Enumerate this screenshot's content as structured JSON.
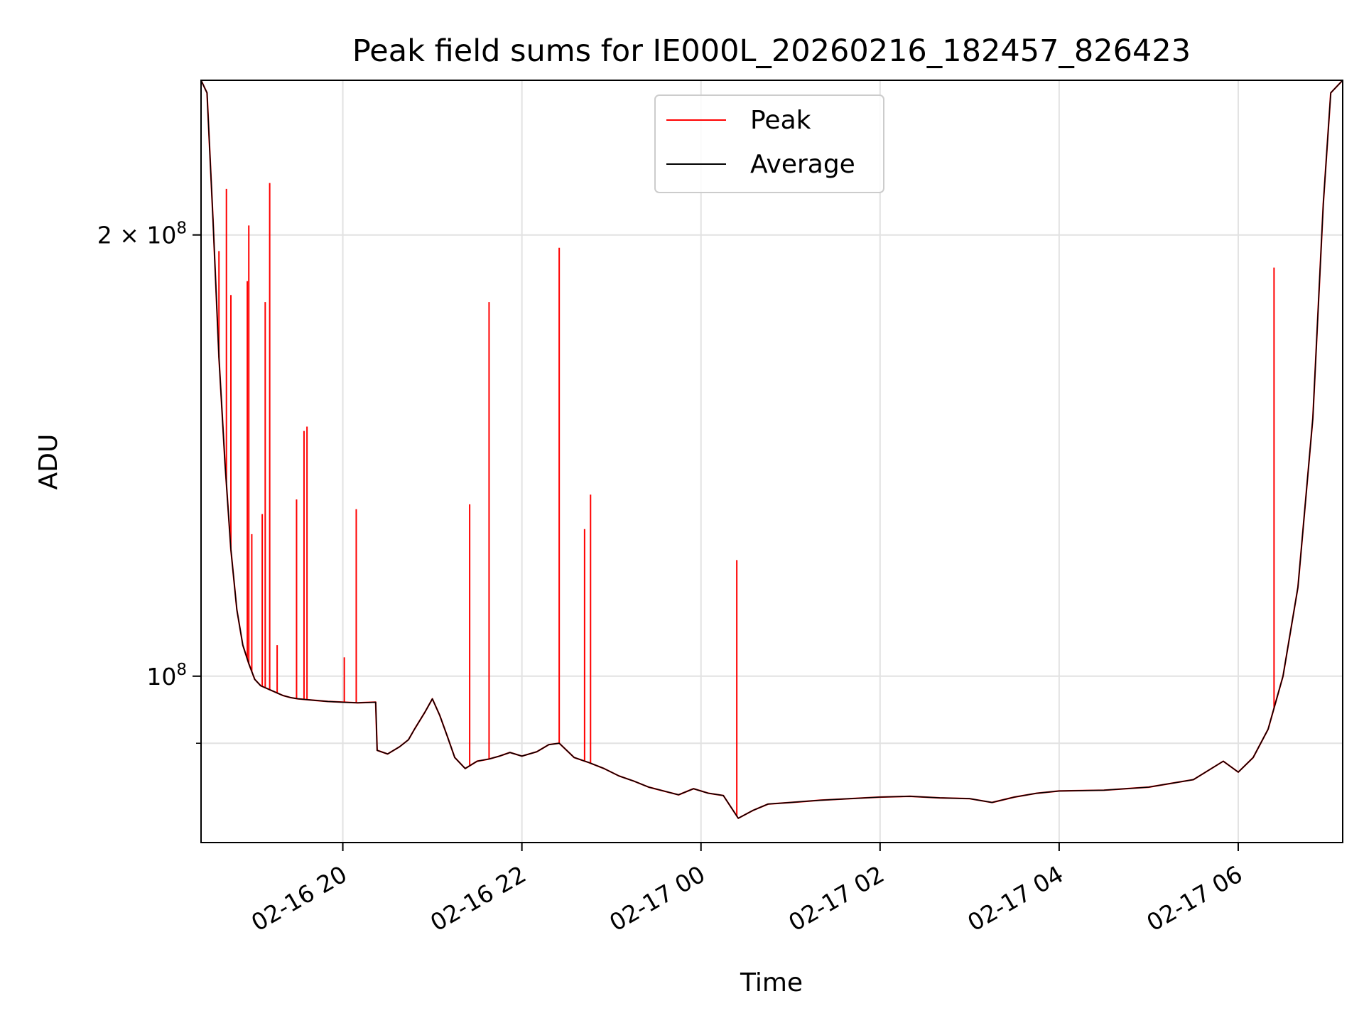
{
  "chart_data": {
    "type": "line",
    "title": "Peak field sums for IE000L_20260216_182457_826423",
    "xlabel": "Time",
    "ylabel": "ADU",
    "yscale": "log",
    "ylim": [
      77000000,
      255000000
    ],
    "xlim": [
      "2026-02-16 18:25",
      "2026-02-17 07:10"
    ],
    "grid": true,
    "legend_position": "top-center",
    "x_tick_labels": [
      "02-16 20",
      "02-16 22",
      "02-17 00",
      "02-17 02",
      "02-17 04",
      "02-17 06"
    ],
    "x_ticks": [
      "2026-02-16 20:00",
      "2026-02-16 22:00",
      "2026-02-17 00:00",
      "2026-02-17 02:00",
      "2026-02-17 04:00",
      "2026-02-17 06:00"
    ],
    "y_major_ticks": [
      {
        "value": 100000000,
        "base": "10",
        "exp": "8",
        "coef": ""
      },
      {
        "value": 200000000,
        "base": "10",
        "exp": "8",
        "coef": "2 × "
      }
    ],
    "y_minor_ticks": [
      90000000
    ],
    "series": [
      {
        "name": "Average",
        "color": "#000000",
        "x": [
          "2026-02-16 18:25",
          "2026-02-16 18:29",
          "2026-02-16 18:33",
          "2026-02-16 18:37",
          "2026-02-16 18:41",
          "2026-02-16 18:45",
          "2026-02-16 18:49",
          "2026-02-16 18:53",
          "2026-02-16 18:57",
          "2026-02-16 19:01",
          "2026-02-16 19:05",
          "2026-02-16 19:10",
          "2026-02-16 19:15",
          "2026-02-16 19:20",
          "2026-02-16 19:25",
          "2026-02-16 19:30",
          "2026-02-16 19:40",
          "2026-02-16 19:50",
          "2026-02-16 20:00",
          "2026-02-16 20:10",
          "2026-02-16 20:22",
          "2026-02-16 20:23",
          "2026-02-16 20:30",
          "2026-02-16 20:38",
          "2026-02-16 20:44",
          "2026-02-16 20:48",
          "2026-02-16 20:55",
          "2026-02-16 21:00",
          "2026-02-16 21:05",
          "2026-02-16 21:10",
          "2026-02-16 21:15",
          "2026-02-16 21:22",
          "2026-02-16 21:30",
          "2026-02-16 21:38",
          "2026-02-16 21:45",
          "2026-02-16 21:52",
          "2026-02-16 22:00",
          "2026-02-16 22:10",
          "2026-02-16 22:18",
          "2026-02-16 22:25",
          "2026-02-16 22:35",
          "2026-02-16 22:45",
          "2026-02-16 22:55",
          "2026-02-16 23:05",
          "2026-02-16 23:15",
          "2026-02-16 23:25",
          "2026-02-16 23:35",
          "2026-02-16 23:45",
          "2026-02-16 23:55",
          "2026-02-17 00:05",
          "2026-02-17 00:15",
          "2026-02-17 00:25",
          "2026-02-17 00:35",
          "2026-02-17 00:45",
          "2026-02-17 01:00",
          "2026-02-17 01:20",
          "2026-02-17 01:40",
          "2026-02-17 02:00",
          "2026-02-17 02:20",
          "2026-02-17 02:40",
          "2026-02-17 03:00",
          "2026-02-17 03:15",
          "2026-02-17 03:30",
          "2026-02-17 03:45",
          "2026-02-17 04:00",
          "2026-02-17 04:30",
          "2026-02-17 05:00",
          "2026-02-17 05:30",
          "2026-02-17 05:50",
          "2026-02-17 06:00",
          "2026-02-17 06:10",
          "2026-02-17 06:20",
          "2026-02-17 06:30",
          "2026-02-17 06:40",
          "2026-02-17 06:50",
          "2026-02-17 06:57",
          "2026-02-17 07:02",
          "2026-02-17 07:10"
        ],
        "values": [
          255000000,
          250000000,
          205000000,
          165000000,
          140000000,
          122000000,
          111000000,
          105000000,
          102000000,
          99500000,
          98500000,
          98000000,
          97500000,
          97000000,
          96700000,
          96500000,
          96300000,
          96100000,
          96000000,
          95900000,
          96000000,
          89000000,
          88500000,
          89500000,
          90500000,
          92000000,
          94500000,
          96500000,
          94000000,
          91000000,
          88000000,
          86500000,
          87500000,
          87800000,
          88200000,
          88700000,
          88200000,
          88800000,
          89800000,
          90000000,
          88000000,
          87300000,
          86500000,
          85500000,
          84800000,
          84000000,
          83500000,
          83000000,
          83800000,
          83200000,
          82900000,
          80000000,
          81000000,
          81800000,
          82000000,
          82300000,
          82500000,
          82700000,
          82800000,
          82600000,
          82500000,
          82000000,
          82700000,
          83200000,
          83500000,
          83600000,
          84000000,
          85000000,
          87500000,
          86000000,
          88000000,
          92000000,
          100000000,
          115000000,
          150000000,
          210000000,
          250000000,
          255000000
        ]
      },
      {
        "name": "Peak",
        "color": "#ff0000",
        "spikes": [
          {
            "x": "2026-02-16 18:37",
            "value": 195000000
          },
          {
            "x": "2026-02-16 18:42",
            "value": 215000000
          },
          {
            "x": "2026-02-16 18:45",
            "value": 182000000
          },
          {
            "x": "2026-02-16 18:56",
            "value": 186000000
          },
          {
            "x": "2026-02-16 18:57",
            "value": 203000000
          },
          {
            "x": "2026-02-16 18:59",
            "value": 125000000
          },
          {
            "x": "2026-02-16 19:06",
            "value": 129000000
          },
          {
            "x": "2026-02-16 19:08",
            "value": 180000000
          },
          {
            "x": "2026-02-16 19:11",
            "value": 217000000
          },
          {
            "x": "2026-02-16 19:16",
            "value": 105000000
          },
          {
            "x": "2026-02-16 19:29",
            "value": 132000000
          },
          {
            "x": "2026-02-16 19:34",
            "value": 147000000
          },
          {
            "x": "2026-02-16 19:36",
            "value": 148000000
          },
          {
            "x": "2026-02-16 20:01",
            "value": 103000000
          },
          {
            "x": "2026-02-16 20:09",
            "value": 130000000
          },
          {
            "x": "2026-02-16 21:25",
            "value": 131000000
          },
          {
            "x": "2026-02-16 21:38",
            "value": 180000000
          },
          {
            "x": "2026-02-16 22:25",
            "value": 196000000
          },
          {
            "x": "2026-02-16 22:42",
            "value": 126000000
          },
          {
            "x": "2026-02-16 22:46",
            "value": 133000000
          },
          {
            "x": "2026-02-17 00:24",
            "value": 120000000
          },
          {
            "x": "2026-02-17 06:24",
            "value": 190000000
          }
        ]
      }
    ]
  }
}
